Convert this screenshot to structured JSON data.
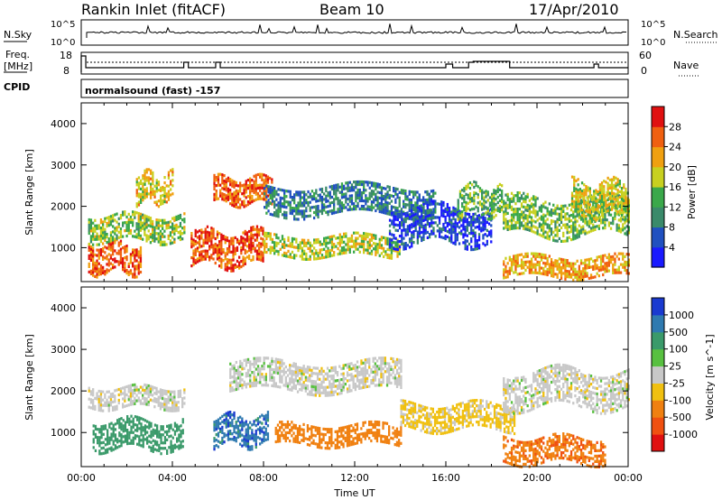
{
  "header": {
    "station": "Rankin Inlet (fitACF)",
    "beam": "Beam 10",
    "date": "17/Apr/2010"
  },
  "top_strips": {
    "nsky_label": "N.Sky",
    "nsky_ticks": [
      "10^5",
      "10^0"
    ],
    "nsearch_label": "N.Search",
    "nsearch_ticks": [
      "10^5",
      "10^0"
    ],
    "freq_label_1": "Freq.",
    "freq_label_2": "[MHz]",
    "freq_ticks": [
      "18",
      "8"
    ],
    "nave_label": "Nave",
    "nave_ticks": [
      "60",
      "0"
    ],
    "cpid_label": "CPID",
    "cpid_text": "normalsound (fast) -157"
  },
  "chart_data": [
    {
      "type": "heatmap",
      "title": "",
      "xlabel": "",
      "ylabel": "Slant Range [km]",
      "xlim_hours": [
        0,
        24
      ],
      "ylim": [
        180,
        4500
      ],
      "yticks": [
        "1000",
        "2000",
        "3000",
        "4000"
      ],
      "colorbar": {
        "label": "Power [dB]",
        "ticks": [
          "4",
          "8",
          "12",
          "16",
          "20",
          "24",
          "28"
        ],
        "colors": [
          "#1a1aff",
          "#2050c0",
          "#3a8a6a",
          "#3aa84a",
          "#c8d020",
          "#f0a010",
          "#f06010",
          "#e01010"
        ]
      },
      "echo_bands": [
        {
          "x": [
            0.3,
            2.6
          ],
          "y": [
            400,
            1100
          ],
          "value": 26
        },
        {
          "x": [
            0.3,
            4.5
          ],
          "y": [
            1200,
            1800
          ],
          "value": 16
        },
        {
          "x": [
            2.4,
            4.0
          ],
          "y": [
            2100,
            2800
          ],
          "value": 20
        },
        {
          "x": [
            4.8,
            8.0
          ],
          "y": [
            600,
            1400
          ],
          "value": 27
        },
        {
          "x": [
            5.8,
            8.4
          ],
          "y": [
            2100,
            2700
          ],
          "value": 26
        },
        {
          "x": [
            8.0,
            14.0
          ],
          "y": [
            800,
            1300
          ],
          "value": 18
        },
        {
          "x": [
            8.0,
            15.5
          ],
          "y": [
            1800,
            2500
          ],
          "value": 9
        },
        {
          "x": [
            13.5,
            18.0
          ],
          "y": [
            1100,
            2000
          ],
          "value": 5
        },
        {
          "x": [
            16.5,
            18.5
          ],
          "y": [
            1800,
            2500
          ],
          "value": 14
        },
        {
          "x": [
            18.5,
            24.0
          ],
          "y": [
            300,
            800
          ],
          "value": 22
        },
        {
          "x": [
            18.5,
            24.0
          ],
          "y": [
            1300,
            2200
          ],
          "value": 15
        },
        {
          "x": [
            21.5,
            24.0
          ],
          "y": [
            1800,
            2600
          ],
          "value": 19
        }
      ]
    },
    {
      "type": "heatmap",
      "title": "",
      "xlabel": "Time UT",
      "ylabel": "Slant Range [km]",
      "xlim_hours": [
        0,
        24
      ],
      "ylim": [
        180,
        4500
      ],
      "xticks": [
        "00:00",
        "04:00",
        "08:00",
        "12:00",
        "16:00",
        "20:00",
        "00:00"
      ],
      "yticks": [
        "1000",
        "2000",
        "3000",
        "4000"
      ],
      "colorbar": {
        "label": "Velocity [m s^-1]",
        "ticks": [
          "1000",
          "500",
          "100",
          "25",
          "-25",
          "-100",
          "-500",
          "-1000"
        ],
        "colors": [
          "#1a3ad0",
          "#2f7ab0",
          "#3a9a6a",
          "#58c040",
          "#c8c8c8",
          "#f0c010",
          "#f08010",
          "#f05010",
          "#e01010"
        ]
      },
      "echo_bands": [
        {
          "x": [
            0.3,
            4.5
          ],
          "y": [
            1600,
            2100
          ],
          "value": 0
        },
        {
          "x": [
            0.5,
            4.5
          ],
          "y": [
            600,
            1300
          ],
          "value": 200
        },
        {
          "x": [
            5.8,
            8.2
          ],
          "y": [
            700,
            1400
          ],
          "value": 800
        },
        {
          "x": [
            6.5,
            14.0
          ],
          "y": [
            2000,
            2700
          ],
          "value": 0
        },
        {
          "x": [
            8.5,
            14.0
          ],
          "y": [
            700,
            1200
          ],
          "value": -300
        },
        {
          "x": [
            14.0,
            19.0
          ],
          "y": [
            1100,
            1700
          ],
          "value": -40
        },
        {
          "x": [
            18.5,
            23.0
          ],
          "y": [
            300,
            900
          ],
          "value": -400
        },
        {
          "x": [
            18.5,
            24.0
          ],
          "y": [
            1600,
            2500
          ],
          "value": 0
        }
      ]
    }
  ]
}
